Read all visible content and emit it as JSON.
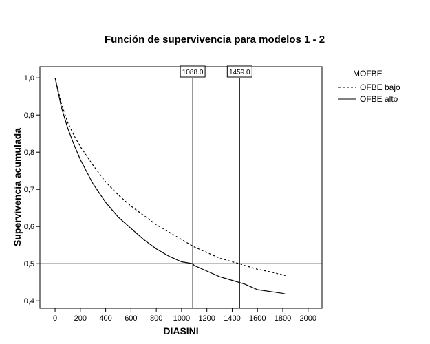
{
  "chart_data": {
    "type": "line",
    "title": "Función de supervivencia para modelos 1 - 2",
    "xlabel": "DIASINI",
    "ylabel": "Supervivencia acumulada",
    "xlim": [
      -120,
      2110
    ],
    "ylim": [
      0.38,
      1.03
    ],
    "x_ticks": [
      0,
      200,
      400,
      600,
      800,
      1000,
      1200,
      1400,
      1600,
      1800,
      2000
    ],
    "x_tick_labels": [
      "0",
      "200",
      "400",
      "600",
      "800",
      "1000",
      "1200",
      "1400",
      "1600",
      "1800",
      "2000"
    ],
    "y_ticks": [
      0.4,
      0.5,
      0.6,
      0.7,
      0.8,
      0.9,
      1.0
    ],
    "y_tick_labels": [
      "0,4",
      "0,5",
      "0,6",
      "0,7",
      "0,8",
      "0,9",
      "1,0"
    ],
    "grid": false,
    "legend": {
      "title": "MOFBE",
      "placement": "right",
      "entries": [
        {
          "label": "OFBE bajo",
          "style": "dashed"
        },
        {
          "label": "OFBE alto",
          "style": "solid"
        }
      ]
    },
    "series": [
      {
        "name": "OFBE bajo",
        "style": "dashed",
        "color": "#000000",
        "x": [
          0,
          50,
          100,
          150,
          200,
          300,
          400,
          500,
          600,
          700,
          800,
          900,
          1000,
          1100,
          1200,
          1300,
          1400,
          1459,
          1500,
          1600,
          1700,
          1820
        ],
        "y": [
          1.0,
          0.93,
          0.88,
          0.845,
          0.815,
          0.765,
          0.72,
          0.685,
          0.655,
          0.63,
          0.605,
          0.585,
          0.565,
          0.545,
          0.53,
          0.515,
          0.505,
          0.5,
          0.495,
          0.485,
          0.478,
          0.468
        ]
      },
      {
        "name": "OFBE alto",
        "style": "solid",
        "color": "#000000",
        "x": [
          0,
          50,
          100,
          150,
          200,
          300,
          400,
          500,
          600,
          700,
          800,
          900,
          1000,
          1088,
          1100,
          1200,
          1300,
          1400,
          1500,
          1600,
          1700,
          1800,
          1820
        ],
        "y": [
          1.0,
          0.92,
          0.865,
          0.82,
          0.78,
          0.715,
          0.665,
          0.625,
          0.595,
          0.565,
          0.54,
          0.52,
          0.505,
          0.5,
          0.495,
          0.48,
          0.465,
          0.455,
          0.445,
          0.43,
          0.425,
          0.42,
          0.418
        ]
      }
    ],
    "reference_lines": {
      "horizontal": [
        {
          "y": 0.5
        }
      ],
      "vertical": [
        {
          "x": 1088.0,
          "label": "1088.0"
        },
        {
          "x": 1459.0,
          "label": "1459.0"
        }
      ]
    }
  }
}
